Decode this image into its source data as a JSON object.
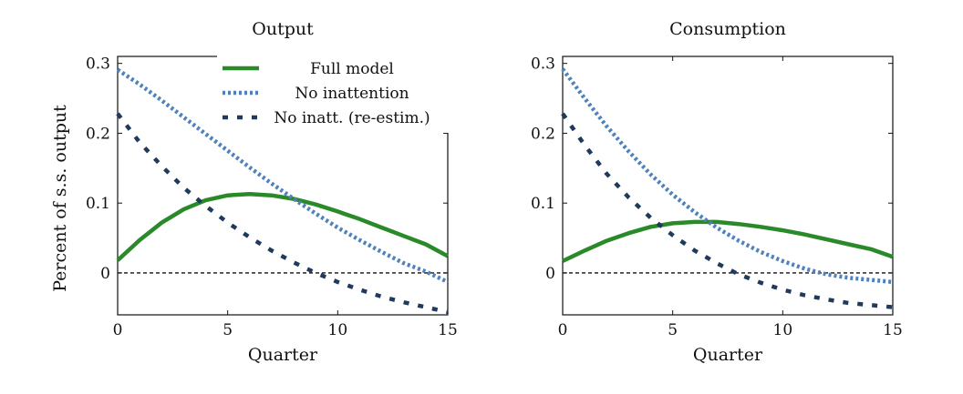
{
  "figure": {
    "ylabel": "Percent of s.s. output"
  },
  "legend": [
    {
      "label": "Full model",
      "color": "#2a8a2a",
      "style": "solid"
    },
    {
      "label": "No inattention",
      "color": "#4f81bd",
      "style": "dotted"
    },
    {
      "label": "No inatt. (re-estim.)",
      "color": "#1f3a5a",
      "style": "dashed"
    }
  ],
  "chart_data": [
    {
      "type": "line",
      "title": "Output",
      "xlabel": "Quarter",
      "ylabel": "Percent of s.s. output",
      "xlim": [
        0,
        15
      ],
      "ylim": [
        -0.06,
        0.31
      ],
      "xticks": [
        0,
        5,
        10,
        15
      ],
      "yticks": [
        0,
        0.1,
        0.2,
        0.3
      ],
      "ytick_labels": [
        "0",
        "0.1",
        "0.2",
        "0.3"
      ],
      "zero_line": true,
      "x": [
        0,
        1,
        2,
        3,
        4,
        5,
        6,
        7,
        8,
        9,
        10,
        11,
        12,
        13,
        14,
        15
      ],
      "series": [
        {
          "name": "Full model",
          "values": [
            0.018,
            0.047,
            0.072,
            0.091,
            0.104,
            0.111,
            0.113,
            0.111,
            0.106,
            0.098,
            0.088,
            0.077,
            0.065,
            0.053,
            0.041,
            0.024
          ]
        },
        {
          "name": "No inattention",
          "values": [
            0.291,
            0.27,
            0.247,
            0.223,
            0.199,
            0.175,
            0.151,
            0.128,
            0.106,
            0.085,
            0.065,
            0.047,
            0.03,
            0.014,
            0.002,
            -0.013
          ]
        },
        {
          "name": "No inatt. (re-estim.)",
          "values": [
            0.228,
            0.187,
            0.153,
            0.122,
            0.096,
            0.072,
            0.051,
            0.032,
            0.015,
            0.0,
            -0.013,
            -0.024,
            -0.034,
            -0.042,
            -0.049,
            -0.056
          ]
        }
      ]
    },
    {
      "type": "line",
      "title": "Consumption",
      "xlabel": "Quarter",
      "ylabel": "",
      "xlim": [
        0,
        15
      ],
      "ylim": [
        -0.06,
        0.31
      ],
      "xticks": [
        0,
        5,
        10,
        15
      ],
      "yticks": [
        0,
        0.1,
        0.2,
        0.3
      ],
      "ytick_labels": [
        "0",
        "0.1",
        "0.2",
        "0.3"
      ],
      "zero_line": true,
      "x": [
        0,
        1,
        2,
        3,
        4,
        5,
        6,
        7,
        8,
        9,
        10,
        11,
        12,
        13,
        14,
        15
      ],
      "series": [
        {
          "name": "Full model",
          "values": [
            0.017,
            0.032,
            0.046,
            0.057,
            0.066,
            0.071,
            0.073,
            0.073,
            0.07,
            0.066,
            0.061,
            0.055,
            0.048,
            0.041,
            0.034,
            0.023
          ]
        },
        {
          "name": "No inattention",
          "values": [
            0.292,
            0.25,
            0.21,
            0.174,
            0.141,
            0.112,
            0.087,
            0.065,
            0.046,
            0.03,
            0.017,
            0.006,
            -0.002,
            -0.007,
            -0.01,
            -0.013
          ]
        },
        {
          "name": "No inatt. (re-estim.)",
          "values": [
            0.228,
            0.183,
            0.142,
            0.108,
            0.079,
            0.054,
            0.032,
            0.014,
            -0.002,
            -0.014,
            -0.024,
            -0.032,
            -0.038,
            -0.043,
            -0.046,
            -0.049
          ]
        }
      ]
    }
  ]
}
